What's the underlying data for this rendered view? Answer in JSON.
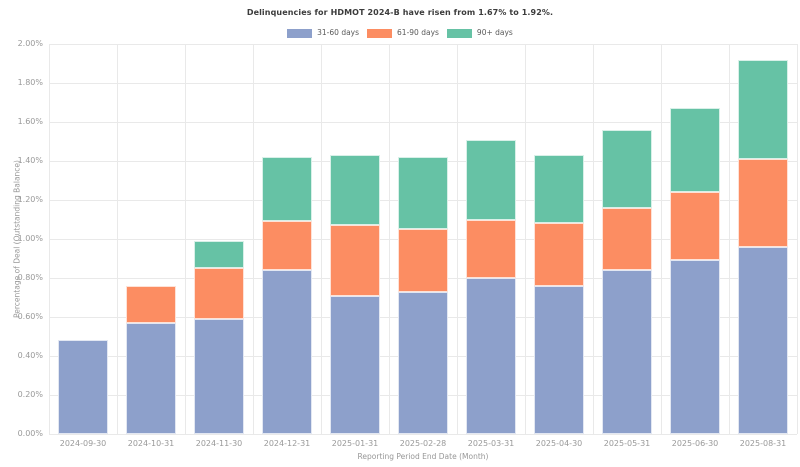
{
  "chart_data": {
    "type": "bar",
    "stacked": true,
    "title": "Delinquencies for HDMOT 2024-B have risen from 1.67% to 1.92%.",
    "xlabel": "Reporting Period End Date (Month)",
    "ylabel": "Percentage of Deal (Outstanding Balance)",
    "categories": [
      "2024-09-30",
      "2024-10-31",
      "2024-11-30",
      "2024-12-31",
      "2025-01-31",
      "2025-02-28",
      "2025-03-31",
      "2025-04-30",
      "2025-05-31",
      "2025-06-30",
      "2025-08-31"
    ],
    "series": [
      {
        "name": "31-60 days",
        "color": "#8da0cb",
        "values": [
          0.48,
          0.57,
          0.59,
          0.84,
          0.71,
          0.73,
          0.8,
          0.76,
          0.84,
          0.89,
          0.96
        ]
      },
      {
        "name": "61-90 days",
        "color": "#fc8d62",
        "values": [
          0.0,
          0.19,
          0.26,
          0.25,
          0.36,
          0.32,
          0.3,
          0.32,
          0.32,
          0.35,
          0.45
        ]
      },
      {
        "name": "90+ days",
        "color": "#66c2a5",
        "values": [
          0.0,
          0.0,
          0.14,
          0.33,
          0.36,
          0.37,
          0.41,
          0.35,
          0.4,
          0.43,
          0.51
        ]
      }
    ],
    "stack_totals": [
      0.48,
      0.76,
      0.99,
      1.42,
      1.43,
      1.42,
      1.51,
      1.43,
      1.56,
      1.67,
      1.92
    ],
    "ylim": [
      0,
      2.0
    ],
    "ytick_step": 0.2,
    "grid": true,
    "legend_position": "top-center"
  },
  "axes": {
    "y_tick_labels": [
      "0.00%",
      "0.20%",
      "0.40%",
      "0.60%",
      "0.80%",
      "1.00%",
      "1.20%",
      "1.40%",
      "1.60%",
      "1.80%",
      "2.00%"
    ]
  },
  "legend": {
    "items": [
      {
        "label": "31-60 days",
        "color": "#8da0cb"
      },
      {
        "label": "61-90 days",
        "color": "#fc8d62"
      },
      {
        "label": "90+ days",
        "color": "#66c2a5"
      }
    ]
  },
  "colors": {
    "background": "#ffffff",
    "grid": "#e9e9e9",
    "title_text": "#3c3c3c",
    "tick_text": "#999999",
    "axis_label_text": "#979797",
    "legend_text": "#5a5a5a",
    "bar_blue": "#8da0cb",
    "bar_orange": "#fc8d62",
    "bar_green": "#66c2a5",
    "bar_edge": "rgba(255,255,255,0.75)"
  }
}
